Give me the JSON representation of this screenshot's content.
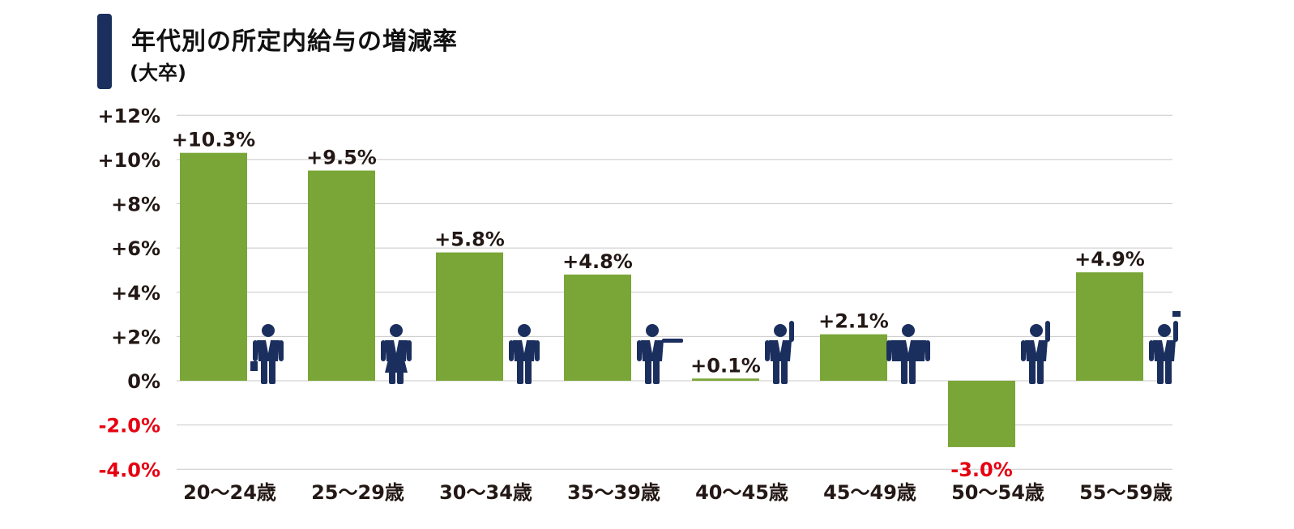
{
  "chart_data": {
    "type": "bar",
    "title": "年代別の所定内給与の増減率",
    "subtitle": "(大卒)",
    "categories": [
      "20～24歳",
      "25～29歳",
      "30～34歳",
      "35～39歳",
      "40～45歳",
      "45～49歳",
      "50～54歳",
      "55～59歳"
    ],
    "values": [
      10.3,
      9.5,
      5.8,
      4.8,
      0.1,
      2.1,
      -3.0,
      4.9
    ],
    "data_labels": [
      "+10.3%",
      "+9.5%",
      "+5.8%",
      "+4.8%",
      "+0.1%",
      "+2.1%",
      "-3.0%",
      "+4.9%"
    ],
    "ylim": [
      -4,
      12
    ],
    "yticks": [
      12,
      10,
      8,
      6,
      4,
      2,
      0,
      -2,
      -4
    ],
    "ytick_labels": [
      "+12%",
      "+10%",
      "+8%",
      "+6%",
      "+4%",
      "+2%",
      "0%",
      "-2.0%",
      "-4.0%"
    ],
    "grid": true,
    "xlabel": "",
    "ylabel": "",
    "colors": {
      "bar": "#7aa637",
      "negative_text": "#e60012",
      "text": "#231815",
      "accent": "#1b2f5e",
      "grid": "#c8c8c8"
    },
    "icons": [
      "businessman-with-briefcase-icon",
      "businesswoman-icon",
      "businessman-standing-icon",
      "businessman-pointing-icon",
      "businessman-scratching-head-icon",
      "heavyset-businessman-icon",
      "businessman-scratching-head-icon",
      "businessman-waving-hat-icon"
    ]
  }
}
